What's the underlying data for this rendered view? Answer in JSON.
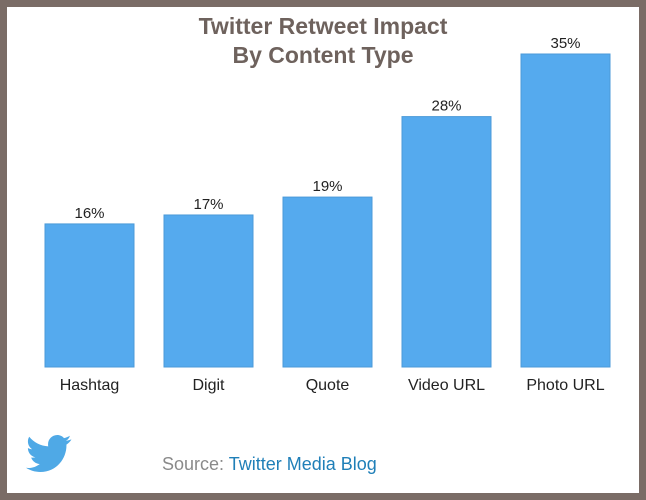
{
  "chart_data": {
    "type": "bar",
    "title_lines": [
      "Twitter Retweet Impact",
      "By Content Type"
    ],
    "categories": [
      "Hashtag",
      "Digit",
      "Quote",
      "Video URL",
      "Photo URL"
    ],
    "values": [
      16,
      17,
      19,
      28,
      35
    ],
    "value_labels": [
      "16%",
      "17%",
      "19%",
      "28%",
      "35%"
    ],
    "ylim": [
      0,
      35
    ],
    "grid": false,
    "legend": "none",
    "colors": {
      "bar": "#55aaee",
      "title": "#6e625d",
      "frame": "#7a6c66"
    }
  },
  "footer": {
    "source_prefix": "Source: ",
    "source_name": "Twitter Media Blog",
    "logo_icon": "twitter-bird-icon"
  }
}
